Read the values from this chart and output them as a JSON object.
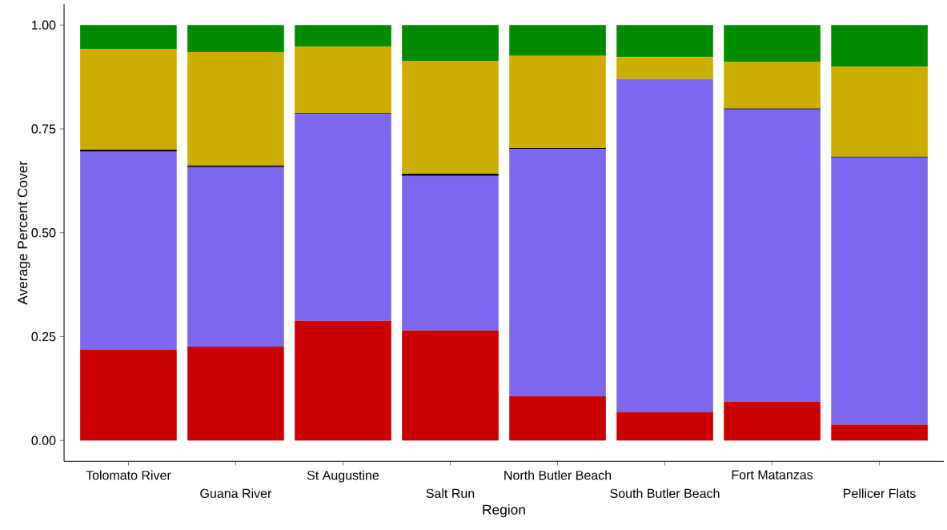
{
  "chart_data": {
    "type": "bar",
    "stacked": true,
    "xlabel": "Region",
    "ylabel": "Average Percent Cover",
    "categories": [
      "Tolomato River",
      "Guana River",
      "St Augustine",
      "Salt Run",
      "North Butler Beach",
      "South Butler Beach",
      "Fort Matanzas",
      "Pellicer Flats"
    ],
    "series": [
      {
        "color": "#cc0000",
        "values": [
          0.219,
          0.226,
          0.288,
          0.265,
          0.107,
          0.069,
          0.094,
          0.038
        ]
      },
      {
        "color": "#7b68ee",
        "values": [
          0.476,
          0.432,
          0.498,
          0.372,
          0.595,
          0.801,
          0.703,
          0.643
        ]
      },
      {
        "color": "#000000",
        "values": [
          0.005,
          0.004,
          0.002,
          0.005,
          0.002,
          0,
          0.002,
          0.002
        ]
      },
      {
        "color": "#cdad00",
        "values": [
          0.242,
          0.273,
          0.16,
          0.272,
          0.222,
          0.053,
          0.113,
          0.217
        ]
      },
      {
        "color": "#008b00",
        "values": [
          0.058,
          0.065,
          0.052,
          0.086,
          0.074,
          0.077,
          0.088,
          0.1
        ]
      }
    ],
    "ylim": [
      -0.05,
      1.05
    ],
    "yticks": [
      {
        "value": 0,
        "label": "0.00"
      },
      {
        "value": 0.25,
        "label": "0.25"
      },
      {
        "value": 0.5,
        "label": "0.50"
      },
      {
        "value": 0.75,
        "label": "0.75"
      },
      {
        "value": 1,
        "label": "1.00"
      }
    ]
  }
}
